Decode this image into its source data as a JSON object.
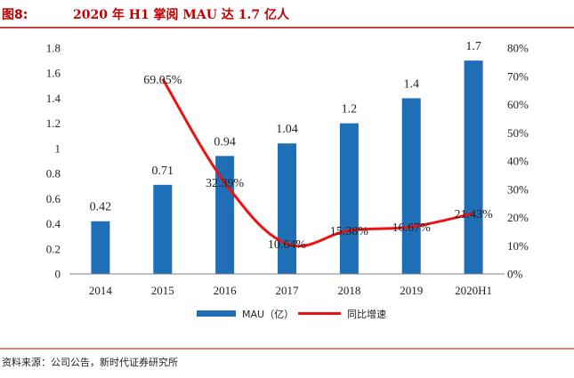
{
  "figure": {
    "label": "图8:",
    "title": "2020 年 H1 掌阅 MAU 达 1.7 亿人",
    "source": "资料来源：公司公告，新时代证券研究所"
  },
  "legend": {
    "bar_label": "MAU（亿）",
    "line_label": "同比增速"
  },
  "chart_data": {
    "type": "bar",
    "categories": [
      "2014",
      "2015",
      "2016",
      "2017",
      "2018",
      "2019",
      "2020H1"
    ],
    "series": [
      {
        "name": "MAU（亿）",
        "type": "bar",
        "axis": "left",
        "color": "#1f6fb7",
        "values": [
          0.42,
          0.71,
          0.94,
          1.04,
          1.2,
          1.4,
          1.7
        ],
        "labels": [
          "0.42",
          "0.71",
          "0.94",
          "1.04",
          "1.2",
          "1.4",
          "1.7"
        ]
      },
      {
        "name": "同比增速",
        "type": "line",
        "axis": "right",
        "color": "#ee1111",
        "values": [
          null,
          69.05,
          32.39,
          10.64,
          15.38,
          16.67,
          21.43
        ],
        "labels": [
          "",
          "69.05%",
          "32.39%",
          "10.64%",
          "15.38%",
          "16.67%",
          "21.43%"
        ]
      }
    ],
    "y_left": {
      "min": 0,
      "max": 1.8,
      "ticks": [
        0,
        0.2,
        0.4,
        0.6,
        0.8,
        1,
        1.2,
        1.4,
        1.6,
        1.8
      ],
      "tick_labels": [
        "0",
        "0.2",
        "0.4",
        "0.6",
        "0.8",
        "1",
        "1.2",
        "1.4",
        "1.6",
        "1.8"
      ]
    },
    "y_right": {
      "min": 0,
      "max": 80,
      "ticks": [
        0,
        10,
        20,
        30,
        40,
        50,
        60,
        70,
        80
      ],
      "tick_labels": [
        "0%",
        "10%",
        "20%",
        "30%",
        "40%",
        "50%",
        "60%",
        "70%",
        "80%"
      ]
    },
    "grid": false,
    "legend_position": "bottom"
  }
}
